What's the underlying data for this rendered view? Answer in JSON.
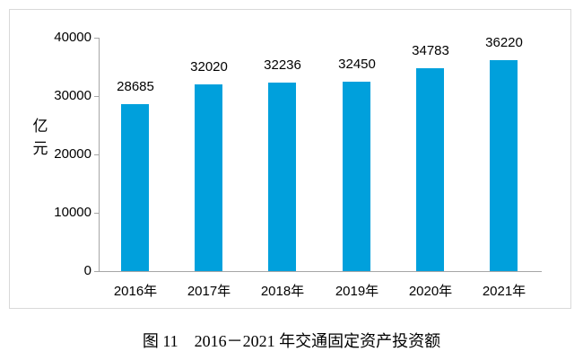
{
  "chart_data": {
    "type": "bar",
    "title": "图 11　2016－2021 年交通固定资产投资额",
    "categories": [
      "2016年",
      "2017年",
      "2018年",
      "2019年",
      "2020年",
      "2021年"
    ],
    "values": [
      28685,
      32020,
      32236,
      32450,
      34783,
      36220
    ],
    "data_labels": [
      "28685",
      "32020",
      "32236",
      "32450",
      "34783",
      "36220"
    ],
    "ylabel": "亿元",
    "ylabel_lines": [
      "亿",
      "元"
    ],
    "y_tick_labels": [
      "40000",
      "30000",
      "20000",
      "10000",
      "0"
    ],
    "ylim": [
      0,
      40000
    ],
    "grid": false,
    "legend": false,
    "bar_color": "#00a0dc",
    "axis_color": "#a6a6a6",
    "frame_color": "#d9d9d9",
    "text_color": "#000000"
  },
  "caption": "图 11　2016－2021 年交通固定资产投资额"
}
